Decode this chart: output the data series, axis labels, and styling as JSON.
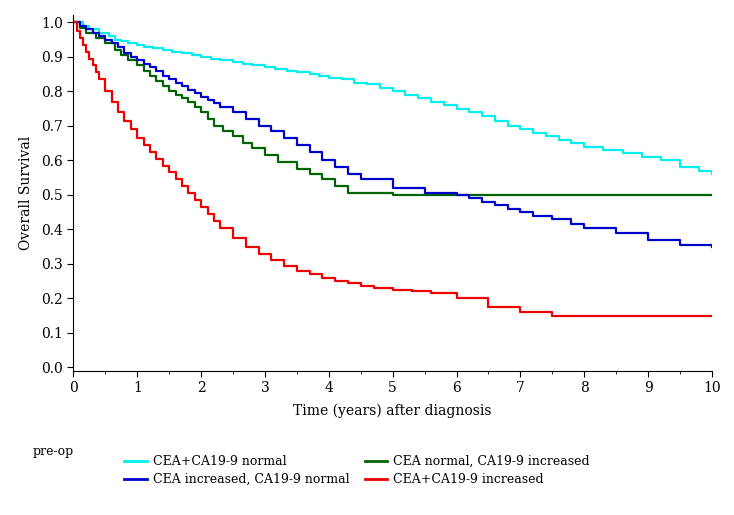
{
  "xlabel": "Time (years) after diagnosis",
  "ylabel": "Overall Survival",
  "xlim": [
    0,
    10
  ],
  "ylim": [
    -0.01,
    1.02
  ],
  "yticks": [
    0.0,
    0.1,
    0.2,
    0.3,
    0.4,
    0.5,
    0.6,
    0.7,
    0.8,
    0.9,
    1.0
  ],
  "xticks": [
    0,
    1,
    2,
    3,
    4,
    5,
    6,
    7,
    8,
    9,
    10
  ],
  "legend_label_preop": "pre-op",
  "curves": {
    "cyan": {
      "label": "CEA+CA19-9 normal",
      "color": "#00EFEF",
      "x": [
        0,
        0.15,
        0.25,
        0.4,
        0.55,
        0.65,
        0.75,
        0.85,
        1.0,
        1.1,
        1.25,
        1.4,
        1.55,
        1.7,
        1.85,
        2.0,
        2.15,
        2.3,
        2.5,
        2.65,
        2.8,
        3.0,
        3.15,
        3.35,
        3.5,
        3.7,
        3.85,
        4.0,
        4.2,
        4.4,
        4.6,
        4.8,
        5.0,
        5.2,
        5.4,
        5.6,
        5.8,
        6.0,
        6.2,
        6.4,
        6.6,
        6.8,
        7.0,
        7.2,
        7.4,
        7.6,
        7.8,
        8.0,
        8.3,
        8.6,
        8.9,
        9.2,
        9.5,
        9.8,
        10.0
      ],
      "y": [
        1.0,
        0.99,
        0.98,
        0.97,
        0.96,
        0.95,
        0.945,
        0.94,
        0.935,
        0.93,
        0.925,
        0.92,
        0.915,
        0.91,
        0.905,
        0.9,
        0.895,
        0.89,
        0.885,
        0.88,
        0.875,
        0.87,
        0.865,
        0.86,
        0.855,
        0.85,
        0.845,
        0.84,
        0.835,
        0.825,
        0.82,
        0.81,
        0.8,
        0.79,
        0.78,
        0.77,
        0.76,
        0.75,
        0.74,
        0.73,
        0.715,
        0.7,
        0.69,
        0.68,
        0.67,
        0.66,
        0.65,
        0.64,
        0.63,
        0.62,
        0.61,
        0.6,
        0.58,
        0.57,
        0.56
      ]
    },
    "green": {
      "label": "CEA normal, CA19-9 increased",
      "color": "#006400",
      "x": [
        0,
        0.1,
        0.2,
        0.35,
        0.5,
        0.65,
        0.75,
        0.85,
        1.0,
        1.1,
        1.2,
        1.3,
        1.4,
        1.5,
        1.6,
        1.7,
        1.8,
        1.9,
        2.0,
        2.1,
        2.2,
        2.35,
        2.5,
        2.65,
        2.8,
        3.0,
        3.2,
        3.5,
        3.7,
        3.9,
        4.1,
        4.3,
        5.0,
        10.0
      ],
      "y": [
        1.0,
        0.985,
        0.97,
        0.955,
        0.94,
        0.92,
        0.905,
        0.89,
        0.875,
        0.86,
        0.845,
        0.83,
        0.815,
        0.8,
        0.79,
        0.78,
        0.77,
        0.755,
        0.74,
        0.72,
        0.7,
        0.685,
        0.67,
        0.65,
        0.635,
        0.615,
        0.595,
        0.575,
        0.56,
        0.545,
        0.525,
        0.505,
        0.5,
        0.5
      ]
    },
    "blue": {
      "label": "CEA increased, CA19-9 normal",
      "color": "#0000CD",
      "x": [
        0,
        0.1,
        0.2,
        0.3,
        0.4,
        0.5,
        0.6,
        0.7,
        0.8,
        0.9,
        1.0,
        1.1,
        1.2,
        1.3,
        1.4,
        1.5,
        1.6,
        1.7,
        1.8,
        1.9,
        2.0,
        2.1,
        2.2,
        2.3,
        2.5,
        2.7,
        2.9,
        3.1,
        3.3,
        3.5,
        3.7,
        3.9,
        4.1,
        4.3,
        4.5,
        5.0,
        5.5,
        6.0,
        6.2,
        6.4,
        6.6,
        6.8,
        7.0,
        7.2,
        7.5,
        7.8,
        8.0,
        8.5,
        9.0,
        9.5,
        10.0
      ],
      "y": [
        1.0,
        0.99,
        0.98,
        0.97,
        0.96,
        0.95,
        0.94,
        0.93,
        0.91,
        0.9,
        0.89,
        0.88,
        0.87,
        0.86,
        0.845,
        0.835,
        0.825,
        0.815,
        0.805,
        0.795,
        0.785,
        0.775,
        0.765,
        0.755,
        0.74,
        0.72,
        0.7,
        0.685,
        0.665,
        0.645,
        0.625,
        0.6,
        0.58,
        0.56,
        0.545,
        0.52,
        0.505,
        0.5,
        0.49,
        0.48,
        0.47,
        0.46,
        0.45,
        0.44,
        0.43,
        0.415,
        0.405,
        0.39,
        0.37,
        0.355,
        0.35
      ]
    },
    "red": {
      "label": "CEA+CA19-9 increased",
      "color": "#EE0000",
      "x": [
        0,
        0.05,
        0.1,
        0.15,
        0.2,
        0.25,
        0.3,
        0.35,
        0.4,
        0.5,
        0.6,
        0.7,
        0.8,
        0.9,
        1.0,
        1.1,
        1.2,
        1.3,
        1.4,
        1.5,
        1.6,
        1.7,
        1.8,
        1.9,
        2.0,
        2.1,
        2.2,
        2.3,
        2.5,
        2.7,
        2.9,
        3.1,
        3.3,
        3.5,
        3.7,
        3.9,
        4.1,
        4.3,
        4.5,
        4.7,
        5.0,
        5.3,
        5.6,
        6.0,
        6.5,
        7.0,
        7.5,
        8.0,
        10.0
      ],
      "y": [
        1.0,
        0.975,
        0.955,
        0.935,
        0.915,
        0.895,
        0.875,
        0.855,
        0.835,
        0.8,
        0.77,
        0.74,
        0.715,
        0.69,
        0.665,
        0.645,
        0.625,
        0.605,
        0.585,
        0.565,
        0.545,
        0.525,
        0.505,
        0.485,
        0.465,
        0.445,
        0.425,
        0.405,
        0.375,
        0.35,
        0.33,
        0.31,
        0.295,
        0.28,
        0.27,
        0.26,
        0.25,
        0.245,
        0.235,
        0.23,
        0.225,
        0.22,
        0.215,
        0.2,
        0.175,
        0.16,
        0.15,
        0.15,
        0.15
      ]
    }
  },
  "linewidth": 1.6,
  "bg_color": "#FFFFFF",
  "font_family": "DejaVu Serif"
}
